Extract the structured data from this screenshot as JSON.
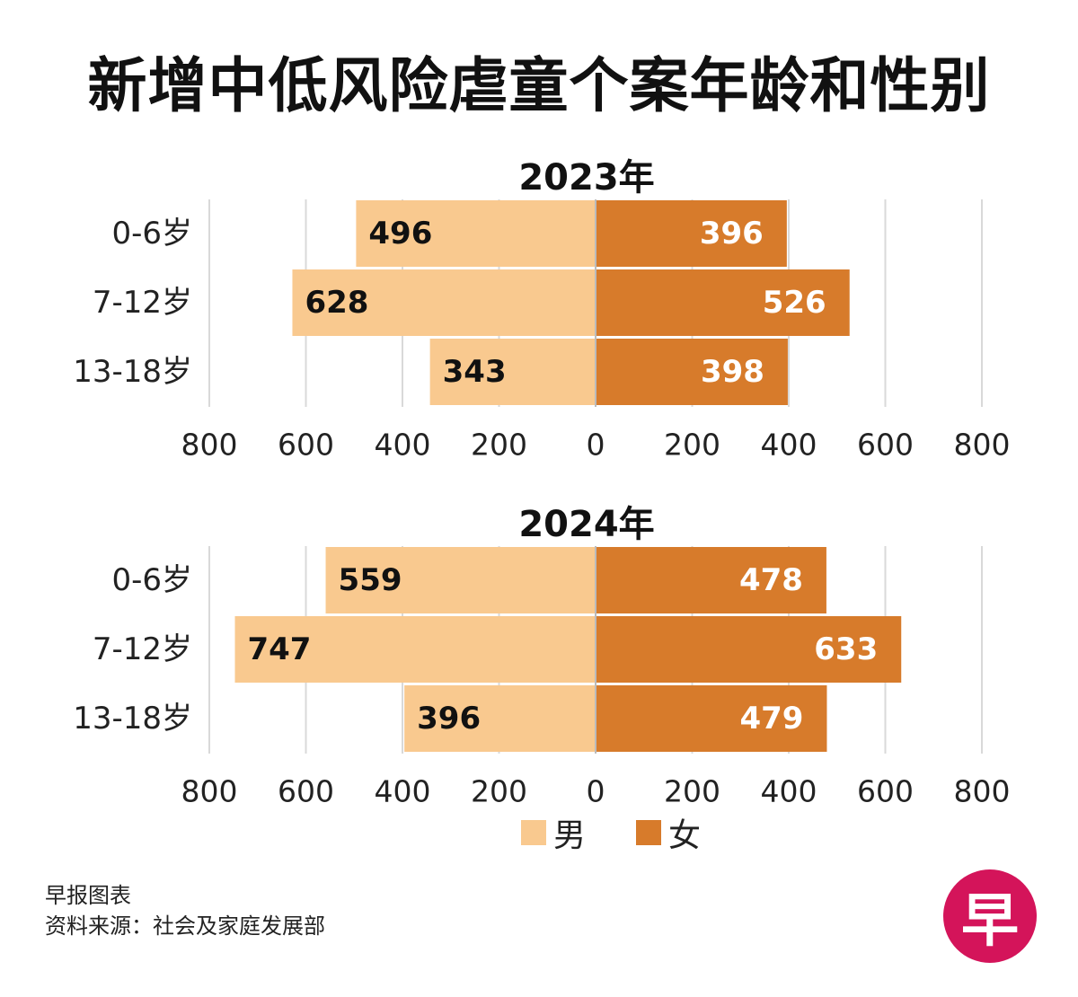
{
  "title": "新增中低风险虐童个案年龄和性别",
  "colors": {
    "male": "#f9c98f",
    "female": "#d77b2b",
    "grid": "#d9d9d9",
    "axis": "#bbbbbb",
    "text": "#222222"
  },
  "legend": {
    "male_label": "男",
    "female_label": "女"
  },
  "chart_data": [
    {
      "type": "bar",
      "title": "2023年",
      "categories": [
        "0-6岁",
        "7-12岁",
        "13-18岁"
      ],
      "series": [
        {
          "name": "男",
          "values": [
            496,
            628,
            343
          ]
        },
        {
          "name": "女",
          "values": [
            396,
            526,
            398
          ]
        }
      ],
      "xticks": [
        800,
        600,
        400,
        200,
        0,
        200,
        400,
        600,
        800
      ],
      "xlim": [
        -800,
        800
      ],
      "grid": true
    },
    {
      "type": "bar",
      "title": "2024年",
      "categories": [
        "0-6岁",
        "7-12岁",
        "13-18岁"
      ],
      "series": [
        {
          "name": "男",
          "values": [
            559,
            747,
            396
          ]
        },
        {
          "name": "女",
          "values": [
            478,
            633,
            479
          ]
        }
      ],
      "xticks": [
        800,
        600,
        400,
        200,
        0,
        200,
        400,
        600,
        800
      ],
      "xlim": [
        -800,
        800
      ],
      "grid": true
    }
  ],
  "footer": {
    "line1": "早报图表",
    "line2": "资料来源：社会及家庭发展部"
  },
  "logo_text": "早"
}
